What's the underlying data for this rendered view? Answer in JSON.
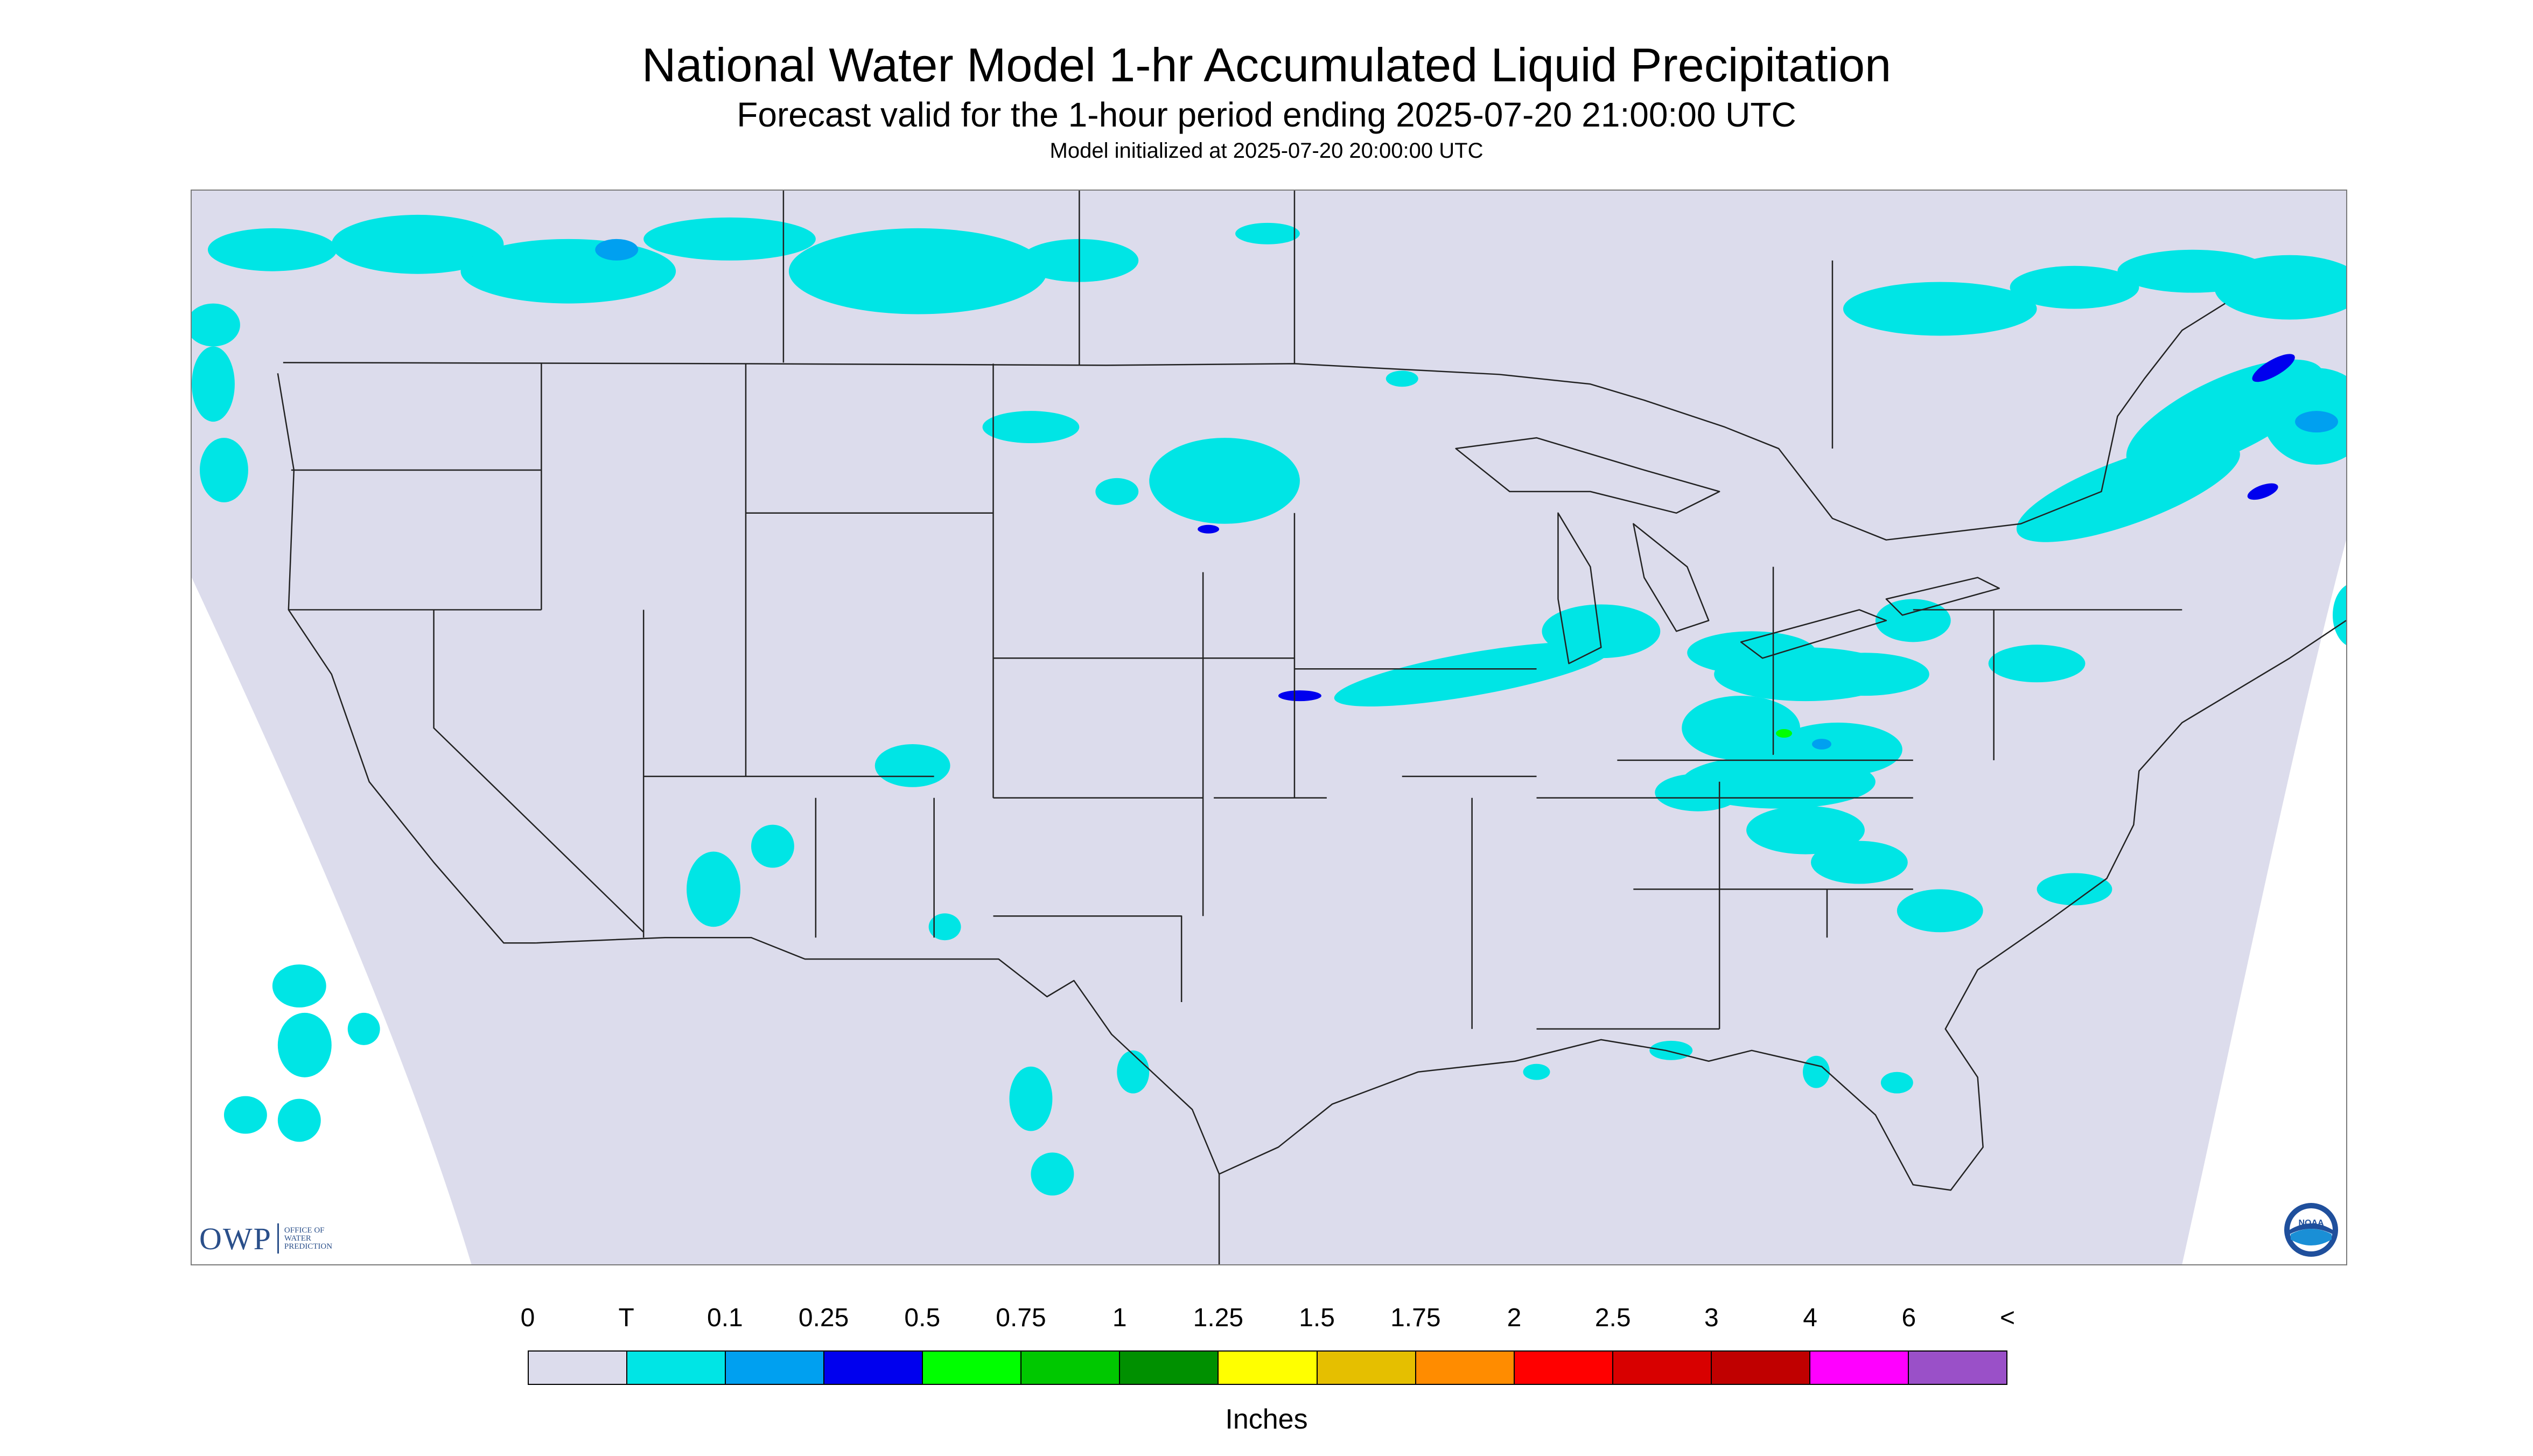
{
  "title": "National Water Model 1-hr Accumulated Liquid Precipitation",
  "subtitle": "Forecast valid for the 1-hour period ending 2025-07-20 21:00:00 UTC",
  "init_text": "Model initialized at 2025-07-20 20:00:00 UTC",
  "logos": {
    "owp_letters": "OWP",
    "owp_line1": "Office of",
    "owp_line2": "Water",
    "owp_line3": "Prediction",
    "noaa_text": "NOAA"
  },
  "colors": {
    "map_background": "#dcdcec",
    "outside_domain": "#ffffff",
    "boundaries": "#222222"
  },
  "colorbar": {
    "units": "Inches",
    "labels": [
      "0",
      "T",
      "0.1",
      "0.25",
      "0.5",
      "0.75",
      "1",
      "1.25",
      "1.5",
      "1.75",
      "2",
      "2.5",
      "3",
      "4",
      "6",
      "<"
    ],
    "colors": [
      "#dcdcec",
      "#00e5e5",
      "#00a0f0",
      "#0000ee",
      "#00ff00",
      "#00c800",
      "#009000",
      "#ffff00",
      "#e5bf00",
      "#ff8c00",
      "#ff0000",
      "#d80000",
      "#c00000",
      "#ff00ff",
      "#9a50c8"
    ]
  }
}
